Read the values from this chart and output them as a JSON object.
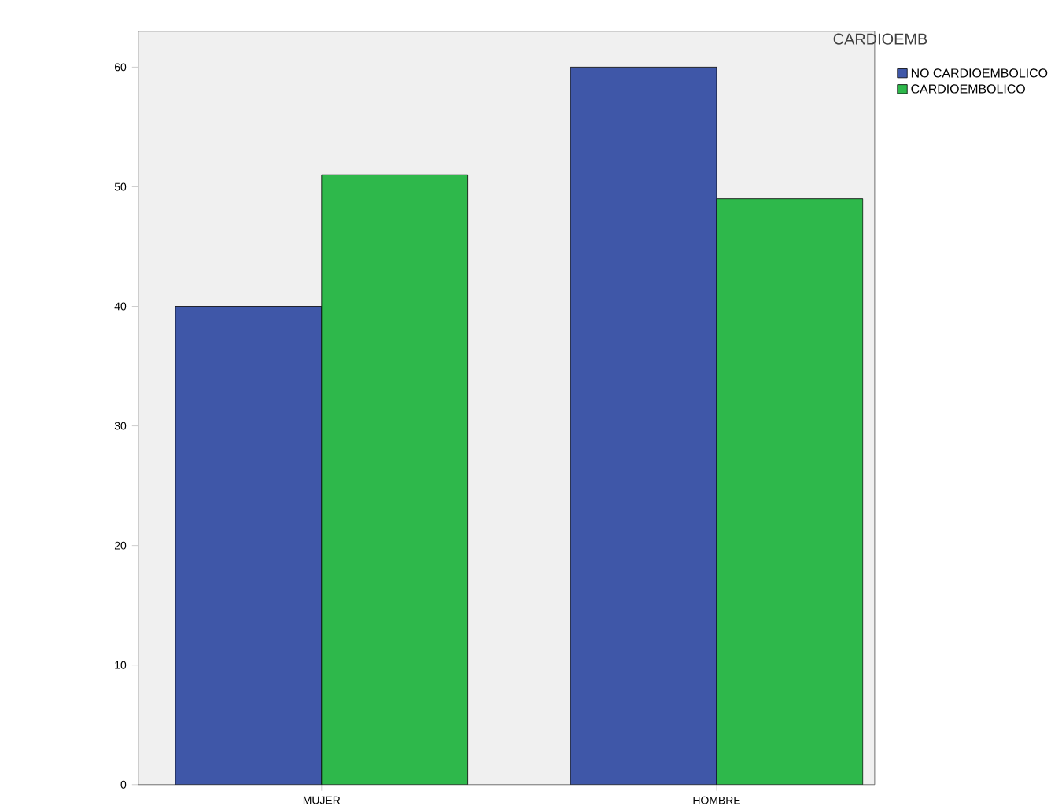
{
  "chart_data": {
    "type": "bar",
    "categories": [
      "MUJER",
      "HOMBRE"
    ],
    "series": [
      {
        "name": "NO CARDIOEMBOLICO",
        "color": "#3f57a8",
        "values": [
          40,
          60
        ]
      },
      {
        "name": "CARDIOEMBOLICO",
        "color": "#2eb84b",
        "values": [
          51,
          49
        ]
      }
    ],
    "legend_title": "CARDIOEMB",
    "legend": "top right",
    "ylim": [
      0,
      63
    ],
    "yticks": [
      0,
      10,
      20,
      30,
      40,
      50,
      60
    ],
    "grid": false
  }
}
